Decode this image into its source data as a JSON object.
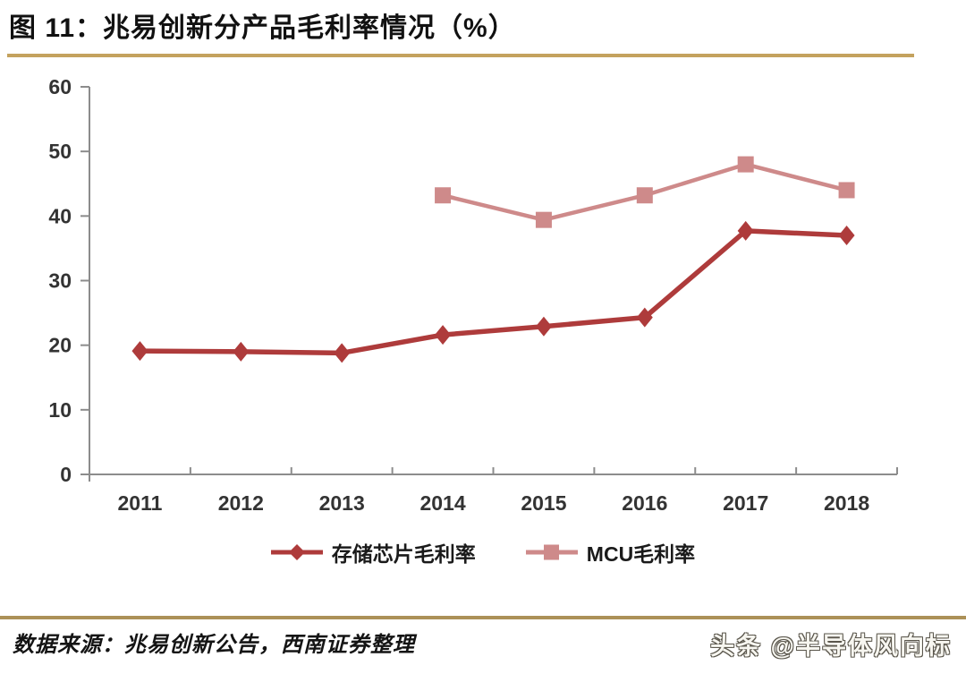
{
  "header": {
    "title": "图 11：兆易创新分产品毛利率情况（%）",
    "rule_color": "#C4A25E"
  },
  "chart_data": {
    "type": "line",
    "title": "兆易创新分产品毛利率情况（%）",
    "categories": [
      "2011",
      "2012",
      "2013",
      "2014",
      "2015",
      "2016",
      "2017",
      "2018"
    ],
    "series": [
      {
        "name": "存储芯片毛利率",
        "color": "#AE3B3B",
        "marker": "diamond",
        "values": [
          19.1,
          19.0,
          18.8,
          21.6,
          22.9,
          24.3,
          37.7,
          37.0
        ]
      },
      {
        "name": "MCU毛利率",
        "color": "#CE8A8A",
        "marker": "square",
        "values": [
          null,
          null,
          null,
          43.2,
          39.4,
          43.2,
          48.0,
          44.0
        ]
      }
    ],
    "xlabel": "",
    "ylabel": "",
    "ylim": [
      0,
      60
    ],
    "yticks": [
      0,
      10,
      20,
      30,
      40,
      50,
      60
    ],
    "grid": false,
    "legend_position": "bottom",
    "axis_color": "#8C8C8C",
    "tick_label_color": "#333333"
  },
  "footer": {
    "source": "数据来源：兆易创新公告，西南证券整理",
    "watermark": "头条 @半导体风向标",
    "rule_color": "#AC9158"
  }
}
